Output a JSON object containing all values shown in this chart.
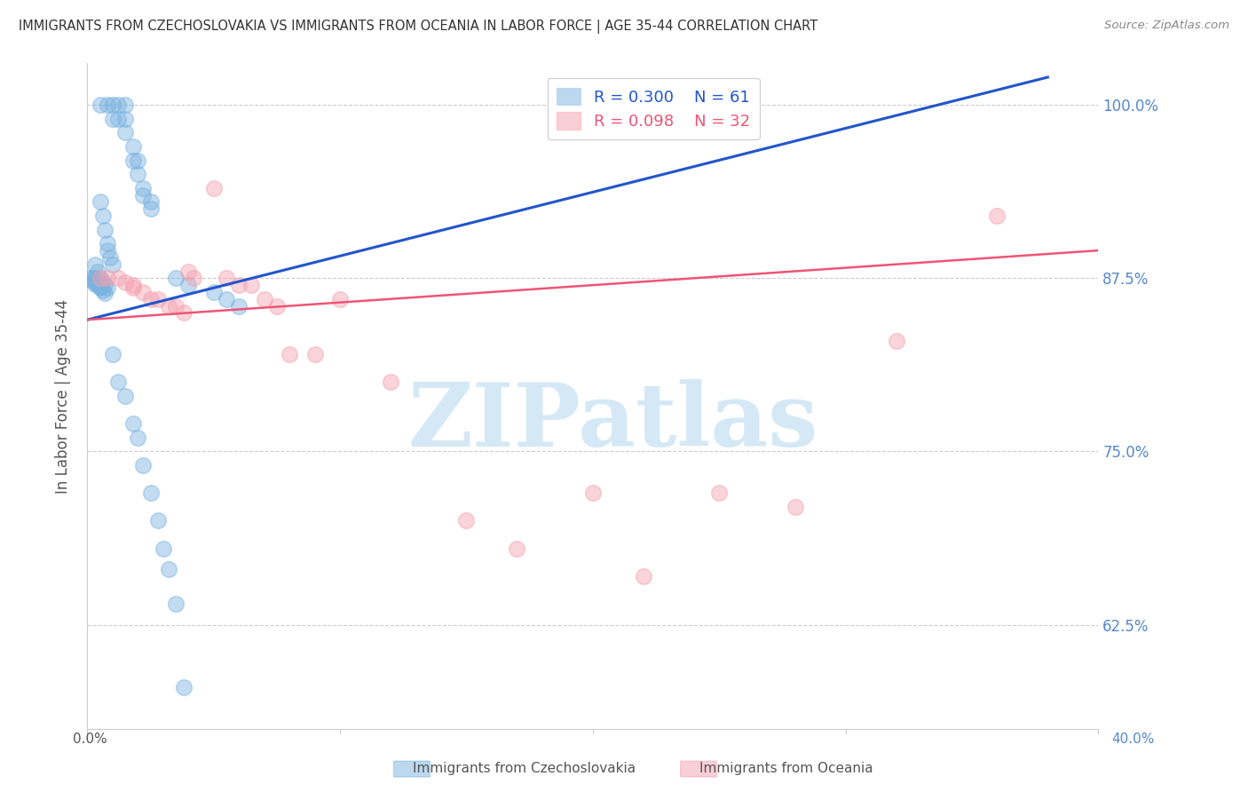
{
  "title": "IMMIGRANTS FROM CZECHOSLOVAKIA VS IMMIGRANTS FROM OCEANIA IN LABOR FORCE | AGE 35-44 CORRELATION CHART",
  "source": "Source: ZipAtlas.com",
  "ylabel": "In Labor Force | Age 35-44",
  "ytick_labels": [
    "100.0%",
    "87.5%",
    "75.0%",
    "62.5%"
  ],
  "ytick_values": [
    1.0,
    0.875,
    0.75,
    0.625
  ],
  "xlim": [
    0.0,
    0.4
  ],
  "ylim": [
    0.55,
    1.03
  ],
  "legend_blue_r": "0.300",
  "legend_blue_n": "61",
  "legend_pink_r": "0.098",
  "legend_pink_n": "32",
  "blue_color": "#7AB3E0",
  "pink_color": "#F4A0B0",
  "trendline_blue_color": "#2255CC",
  "trendline_pink_color": "#EE5577",
  "watermark_text": "ZIPatlas",
  "watermark_color": "#D5E8F5",
  "axis_label_color": "#5588CC",
  "grid_color": "#CCCCCC",
  "blue_scatter_x": [
    0.005,
    0.008,
    0.01,
    0.01,
    0.012,
    0.012,
    0.015,
    0.015,
    0.015,
    0.018,
    0.018,
    0.02,
    0.02,
    0.022,
    0.022,
    0.025,
    0.025,
    0.005,
    0.006,
    0.007,
    0.008,
    0.008,
    0.009,
    0.01,
    0.003,
    0.004,
    0.005,
    0.006,
    0.007,
    0.008,
    0.003,
    0.004,
    0.005,
    0.005,
    0.006,
    0.007,
    0.002,
    0.003,
    0.004,
    0.004,
    0.005,
    0.001,
    0.002,
    0.003,
    0.035,
    0.04,
    0.05,
    0.055,
    0.06,
    0.01,
    0.012,
    0.015,
    0.018,
    0.02,
    0.022,
    0.025,
    0.028,
    0.03,
    0.032,
    0.035,
    0.038
  ],
  "blue_scatter_y": [
    1.0,
    1.0,
    1.0,
    0.99,
    1.0,
    0.99,
    1.0,
    0.99,
    0.98,
    0.97,
    0.96,
    0.96,
    0.95,
    0.94,
    0.935,
    0.93,
    0.925,
    0.93,
    0.92,
    0.91,
    0.9,
    0.895,
    0.89,
    0.885,
    0.885,
    0.88,
    0.875,
    0.872,
    0.87,
    0.868,
    0.875,
    0.872,
    0.87,
    0.868,
    0.866,
    0.864,
    0.875,
    0.873,
    0.871,
    0.87,
    0.869,
    0.875,
    0.873,
    0.871,
    0.875,
    0.87,
    0.865,
    0.86,
    0.855,
    0.82,
    0.8,
    0.79,
    0.77,
    0.76,
    0.74,
    0.72,
    0.7,
    0.68,
    0.665,
    0.64,
    0.58
  ],
  "pink_scatter_x": [
    0.005,
    0.008,
    0.012,
    0.015,
    0.018,
    0.018,
    0.022,
    0.025,
    0.028,
    0.032,
    0.035,
    0.038,
    0.04,
    0.042,
    0.05,
    0.055,
    0.06,
    0.065,
    0.07,
    0.075,
    0.08,
    0.09,
    0.1,
    0.12,
    0.15,
    0.17,
    0.2,
    0.22,
    0.25,
    0.28,
    0.32,
    0.36
  ],
  "pink_scatter_y": [
    0.875,
    0.875,
    0.875,
    0.872,
    0.87,
    0.868,
    0.865,
    0.86,
    0.86,
    0.855,
    0.855,
    0.85,
    0.88,
    0.875,
    0.94,
    0.875,
    0.87,
    0.87,
    0.86,
    0.855,
    0.82,
    0.82,
    0.86,
    0.8,
    0.7,
    0.68,
    0.72,
    0.66,
    0.72,
    0.71,
    0.83,
    0.92
  ],
  "blue_trendline": [
    0.0,
    0.845,
    0.38,
    1.02
  ],
  "pink_trendline": [
    0.0,
    0.845,
    0.4,
    0.895
  ]
}
